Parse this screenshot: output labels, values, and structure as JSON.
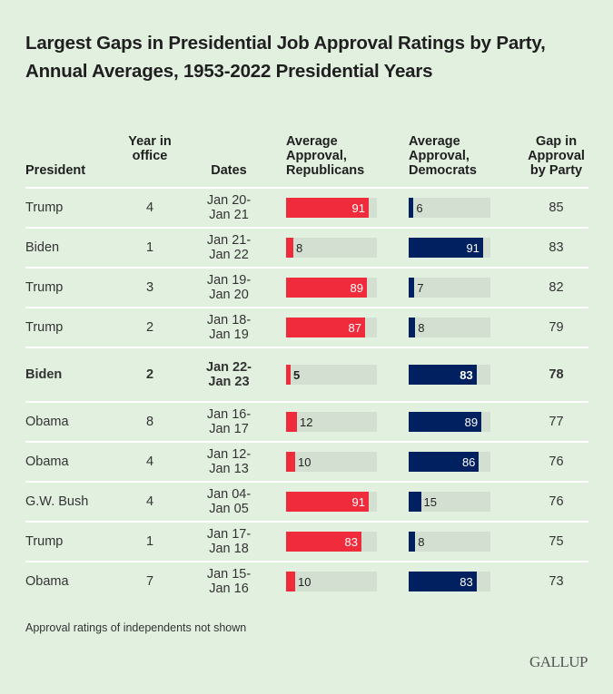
{
  "chart_data": {
    "type": "table",
    "title": "Largest Gaps in Presidential Job Approval Ratings by Party, Annual Averages, 1953-2022 Presidential Years",
    "columns": [
      "President",
      "Year in office",
      "Dates",
      "Average Approval, Republicans",
      "Average Approval, Democrats",
      "Gap in Approval by Party"
    ],
    "bar_scale_max": 100,
    "colors": {
      "republicans": "#f02c3c",
      "democrats": "#002060",
      "track": "#d3dfd1"
    },
    "rows": [
      {
        "president": "Trump",
        "year": "4",
        "dates": "Jan 20-Jan 21",
        "rep": 91,
        "dem": 6,
        "gap": 85,
        "bold": false
      },
      {
        "president": "Biden",
        "year": "1",
        "dates": "Jan 21-Jan 22",
        "rep": 8,
        "dem": 91,
        "gap": 83,
        "bold": false
      },
      {
        "president": "Trump",
        "year": "3",
        "dates": "Jan 19-Jan 20",
        "rep": 89,
        "dem": 7,
        "gap": 82,
        "bold": false
      },
      {
        "president": "Trump",
        "year": "2",
        "dates": "Jan 18-Jan 19",
        "rep": 87,
        "dem": 8,
        "gap": 79,
        "bold": false
      },
      {
        "president": "Biden",
        "year": "2",
        "dates": "Jan 22-Jan 23",
        "rep": 5,
        "dem": 83,
        "gap": 78,
        "bold": true
      },
      {
        "president": "Obama",
        "year": "8",
        "dates": "Jan 16-Jan 17",
        "rep": 12,
        "dem": 89,
        "gap": 77,
        "bold": false
      },
      {
        "president": "Obama",
        "year": "4",
        "dates": "Jan 12-Jan 13",
        "rep": 10,
        "dem": 86,
        "gap": 76,
        "bold": false
      },
      {
        "president": "G.W. Bush",
        "year": "4",
        "dates": "Jan 04-Jan 05",
        "rep": 91,
        "dem": 15,
        "gap": 76,
        "bold": false
      },
      {
        "president": "Trump",
        "year": "1",
        "dates": "Jan 17-Jan 18",
        "rep": 83,
        "dem": 8,
        "gap": 75,
        "bold": false
      },
      {
        "president": "Obama",
        "year": "7",
        "dates": "Jan 15-Jan 16",
        "rep": 10,
        "dem": 83,
        "gap": 73,
        "bold": false
      }
    ]
  },
  "header": {
    "president": "President",
    "year": "Year in office",
    "dates": "Dates",
    "rep": "Average Approval, Republicans",
    "dem": "Average Approval, Democrats",
    "gap": "Gap in Approval by Party"
  },
  "footnote": "Approval ratings of independents not shown",
  "logo": "GALLUP"
}
